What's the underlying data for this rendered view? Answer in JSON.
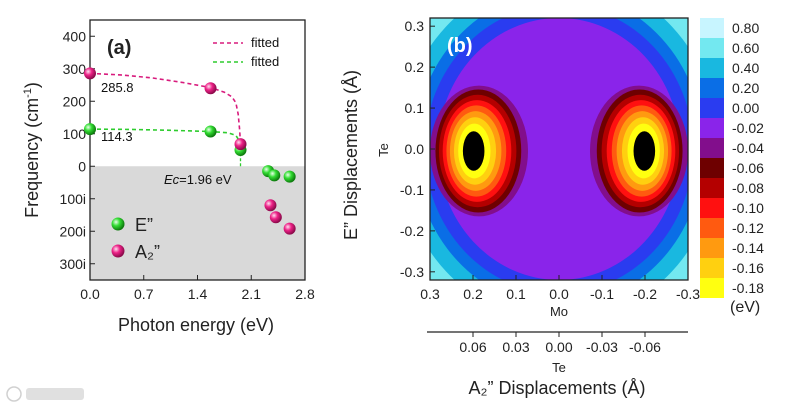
{
  "chart_data": [
    {
      "type": "scatter",
      "panel_label": "(a)",
      "xlabel": "Photon energy (eV)",
      "ylabel": "Frequency (cm",
      "ylabel_sup": "-1",
      "ylabel_end": ")",
      "xlim": [
        0,
        2.8
      ],
      "ylim": [
        -350,
        450
      ],
      "xticks": [
        0.0,
        0.7,
        1.4,
        2.1,
        2.8
      ],
      "xtick_labels": [
        "0.0",
        "0.7",
        "1.4",
        "2.1",
        "2.8"
      ],
      "yticks": [
        400,
        300,
        200,
        100,
        0,
        -100,
        -200,
        -300
      ],
      "ytick_labels": [
        "400",
        "300",
        "200",
        "100",
        "0",
        "100i",
        "200i",
        "300i"
      ],
      "imaginary_region_color": "#d9d9d9",
      "series": [
        {
          "name": "E”",
          "color": "#22cc22",
          "points": [
            [
              0.0,
              114.3
            ],
            [
              1.57,
              107
            ],
            [
              1.96,
              50
            ],
            [
              2.32,
              -15
            ],
            [
              2.4,
              -28
            ],
            [
              2.6,
              -32
            ]
          ]
        },
        {
          "name": "A₂”",
          "color": "#e0107a",
          "points": [
            [
              0.0,
              285.8
            ],
            [
              1.57,
              240
            ],
            [
              1.96,
              68
            ],
            [
              2.35,
              -120
            ],
            [
              2.42,
              -157
            ],
            [
              2.6,
              -192
            ]
          ]
        }
      ],
      "fits": [
        {
          "name": "fitted",
          "color": "#d81b7d",
          "points": [
            [
              0.0,
              285.8
            ],
            [
              0.4,
              281
            ],
            [
              0.8,
              272
            ],
            [
              1.2,
              258
            ],
            [
              1.57,
              242
            ],
            [
              1.75,
              228
            ],
            [
              1.85,
              213
            ],
            [
              1.9,
              195
            ],
            [
              1.93,
              160
            ],
            [
              1.95,
              110
            ],
            [
              1.96,
              65
            ]
          ]
        },
        {
          "name": "fitted",
          "color": "#2ecc2e",
          "points": [
            [
              0.0,
              114.3
            ],
            [
              0.5,
              113.5
            ],
            [
              1.0,
              111
            ],
            [
              1.57,
              107
            ],
            [
              1.8,
              103
            ],
            [
              1.9,
              95
            ],
            [
              1.94,
              80
            ],
            [
              1.96,
              55
            ]
          ]
        }
      ],
      "annotations": {
        "a2_value": "285.8",
        "e_value": "114.3",
        "ec": "Ec",
        "ec_value": "=1.96 eV"
      }
    },
    {
      "type": "heatmap",
      "panel_label": "(b)",
      "xlabel": "Mo",
      "ylabel": "E” Displacements (Å)",
      "ylabel_inner": "Te",
      "xlim": [
        0.3,
        -0.3
      ],
      "ylim": [
        -0.32,
        0.32
      ],
      "xticks": [
        0.3,
        0.2,
        0.1,
        0.0,
        -0.1,
        -0.2,
        -0.3
      ],
      "xtick_labels": [
        "0.3",
        "0.2",
        "0.1",
        "0.0",
        "-0.1",
        "-0.2",
        "-0.3"
      ],
      "yticks": [
        0.3,
        0.2,
        0.1,
        0.0,
        -0.1,
        -0.2,
        -0.3
      ],
      "ytick_labels": [
        "0.3",
        "0.2",
        "0.1",
        "0.0",
        "-0.1",
        "-0.2",
        "-0.3"
      ],
      "top_axis": {
        "label": "A₂” Displacements (Å)",
        "sublabel": "Te",
        "ticks": [
          0.06,
          0.03,
          0.0,
          -0.03,
          -0.06
        ],
        "tick_labels": [
          "0.06",
          "0.03",
          "0.00",
          "-0.03",
          "-0.06"
        ]
      },
      "colorbar": {
        "unit": "(eV)",
        "levels": [
          "0.80",
          "0.60",
          "0.40",
          "0.20",
          "0.00",
          "-0.02",
          "-0.04",
          "-0.06",
          "-0.08",
          "-0.10",
          "-0.12",
          "-0.14",
          "-0.16",
          "-0.18"
        ],
        "colors": [
          "#c8f5ff",
          "#73e8f0",
          "#19b8e0",
          "#0a6ee6",
          "#2a3cf0",
          "#8a24ea",
          "#820e8c",
          "#6e0000",
          "#b40000",
          "#ff1010",
          "#ff5a10",
          "#ff9a10",
          "#ffd010",
          "#ffff10"
        ]
      },
      "well_minimum": -0.18,
      "well_centers_x": [
        0.2,
        -0.2
      ]
    }
  ]
}
